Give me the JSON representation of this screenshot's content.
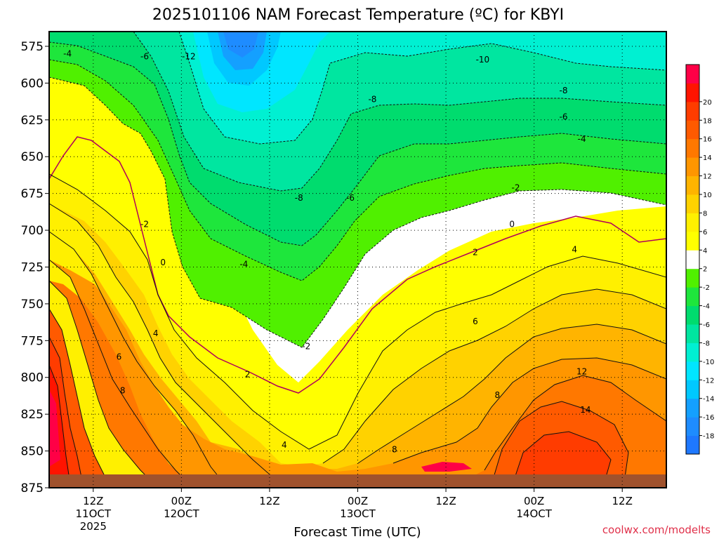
{
  "chart_data": {
    "type": "heatmap",
    "title": "2025101106 NAM Forecast Temperature (ºC) for KBYI",
    "xlabel": "Forecast Time (UTC)",
    "ylabel": "",
    "watermark": "coolwx.com/modelts",
    "x_unit": "hours since 2025-10-11 06Z",
    "xlim": [
      0,
      84
    ],
    "ylim": [
      875,
      565
    ],
    "y_ticks": [
      575,
      600,
      625,
      650,
      675,
      700,
      725,
      750,
      775,
      800,
      825,
      850,
      875
    ],
    "x_ticks": [
      {
        "x": 6,
        "lines": [
          "12Z",
          "11OCT",
          "2025"
        ]
      },
      {
        "x": 18,
        "lines": [
          "00Z",
          "12OCT"
        ]
      },
      {
        "x": 30,
        "lines": [
          "12Z"
        ]
      },
      {
        "x": 42,
        "lines": [
          "00Z",
          "13OCT"
        ]
      },
      {
        "x": 54,
        "lines": [
          "12Z"
        ]
      },
      {
        "x": 66,
        "lines": [
          "00Z",
          "14OCT"
        ]
      },
      {
        "x": 78,
        "lines": [
          "12Z"
        ]
      }
    ],
    "colorbar": {
      "levels": [
        -20,
        -18,
        -16,
        -14,
        -12,
        -10,
        -8,
        -6,
        -4,
        -2,
        2,
        4,
        6,
        8,
        10,
        12,
        14,
        16,
        18,
        20,
        22
      ],
      "labels": [
        "-18",
        "-16",
        "-14",
        "-12",
        "-10",
        "-8",
        "-6",
        "-4",
        "-2",
        "2",
        "4",
        "6",
        "8",
        "10",
        "12",
        "14",
        "16",
        "18",
        "20"
      ],
      "colors": [
        "#1e78ff",
        "#1e8cff",
        "#14a0ff",
        "#00c8ff",
        "#00e6ff",
        "#00f0d2",
        "#00e6a0",
        "#00dc6e",
        "#1ee63c",
        "#50f000",
        "#ffffff",
        "#ffff00",
        "#fff000",
        "#ffd200",
        "#ffb400",
        "#ff9600",
        "#ff7800",
        "#ff5a00",
        "#ff3c00",
        "#ff1400",
        "#ff0046"
      ]
    },
    "contour_labels": [
      {
        "text": "-4",
        "x": 2.5,
        "p": 580
      },
      {
        "text": "-6",
        "x": 13,
        "p": 582
      },
      {
        "text": "-12",
        "x": 19,
        "p": 582
      },
      {
        "text": "-10",
        "x": 59,
        "p": 584
      },
      {
        "text": "-8",
        "x": 44,
        "p": 611
      },
      {
        "text": "-8",
        "x": 70,
        "p": 605
      },
      {
        "text": "-6",
        "x": 70,
        "p": 623
      },
      {
        "text": "-4",
        "x": 72.5,
        "p": 638
      },
      {
        "text": "-2",
        "x": 63.5,
        "p": 671
      },
      {
        "text": "-8",
        "x": 34,
        "p": 678
      },
      {
        "text": "-6",
        "x": 41,
        "p": 678
      },
      {
        "text": "-2",
        "x": 13,
        "p": 696
      },
      {
        "text": "0",
        "x": 63,
        "p": 696
      },
      {
        "text": "0",
        "x": 15.5,
        "p": 722
      },
      {
        "text": "-4",
        "x": 26.5,
        "p": 723
      },
      {
        "text": "2",
        "x": 58,
        "p": 715
      },
      {
        "text": "4",
        "x": 71.5,
        "p": 713
      },
      {
        "text": "4",
        "x": 14.5,
        "p": 770
      },
      {
        "text": "6",
        "x": 58,
        "p": 762
      },
      {
        "text": "6",
        "x": 9.5,
        "p": 786
      },
      {
        "text": "-2",
        "x": 35,
        "p": 779
      },
      {
        "text": "2",
        "x": 27,
        "p": 798
      },
      {
        "text": "8",
        "x": 10,
        "p": 809
      },
      {
        "text": "8",
        "x": 61,
        "p": 812
      },
      {
        "text": "12",
        "x": 72.5,
        "p": 796
      },
      {
        "text": "14",
        "x": 73,
        "p": 822
      },
      {
        "text": "4",
        "x": 32,
        "p": 846
      },
      {
        "text": "8",
        "x": 47,
        "p": 849
      }
    ],
    "grid": true
  }
}
